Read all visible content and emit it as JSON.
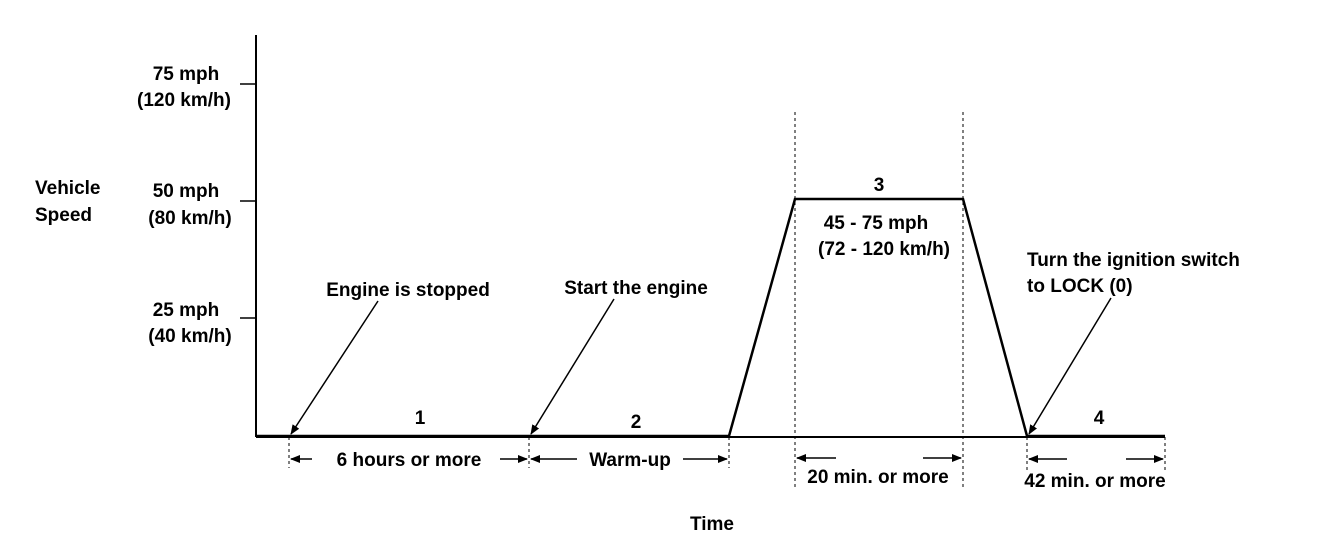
{
  "y_axis": {
    "title_line1": "Vehicle",
    "title_line2": "Speed",
    "ticks": [
      {
        "mph": "75 mph",
        "kmh": "(120 km/h)"
      },
      {
        "mph": "50 mph",
        "kmh": "(80 km/h)"
      },
      {
        "mph": "25 mph",
        "kmh": "(40 km/h)"
      }
    ]
  },
  "x_axis": {
    "title": "Time"
  },
  "phases": [
    {
      "number": "1",
      "duration": "6 hours or more",
      "callout": "Engine is stopped"
    },
    {
      "number": "2",
      "duration": "Warm-up",
      "callout": "Start the engine"
    },
    {
      "number": "3",
      "duration": "20 min. or more",
      "range_line1": "45 - 75 mph",
      "range_line2": "(72 - 120 km/h)"
    },
    {
      "number": "4",
      "duration": "42 min. or more",
      "callout_line1": "Turn the ignition switch",
      "callout_line2": "to LOCK (0)"
    }
  ],
  "colors": {
    "line": "#000000",
    "background": "#ffffff"
  }
}
